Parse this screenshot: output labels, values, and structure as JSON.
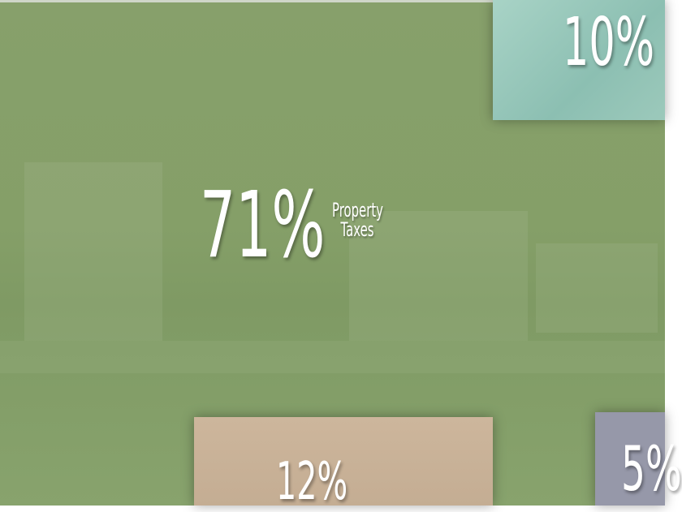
{
  "tiles": [
    {
      "value_label": "71%",
      "label": "Property Taxes"
    },
    {
      "value_label": "10%"
    },
    {
      "value_label": "12%"
    },
    {
      "value_label": "5%"
    }
  ]
}
